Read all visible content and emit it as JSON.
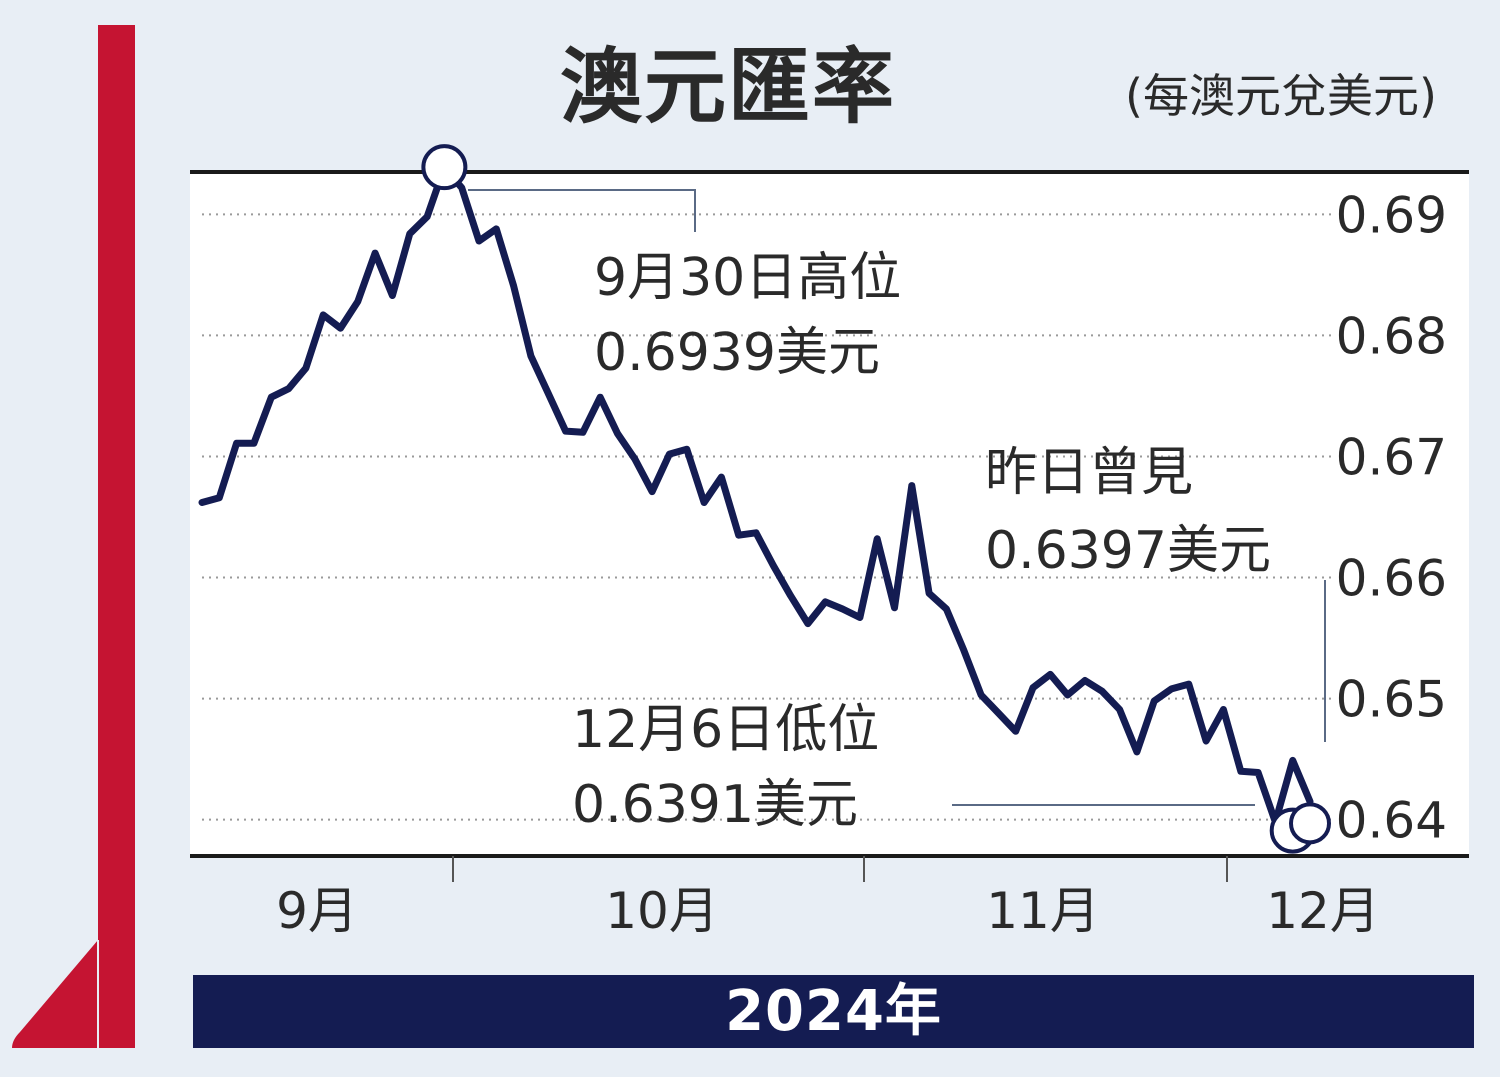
{
  "title": "澳元匯率",
  "unit": "(每澳元兌美元)",
  "year_label": "2024年",
  "colors": {
    "background": "#e8eef5",
    "accent_red": "#c51432",
    "line": "#141c52",
    "year_bar": "#141c52",
    "grid": "#9a9a9a",
    "text": "#2a2a2a"
  },
  "annotations": {
    "high_date": "9月30日高位",
    "high_value": "0.6939美元",
    "yesterday_label": "昨日曾見",
    "yesterday_value": "0.6397美元",
    "low_date": "12月6日低位",
    "low_value": "0.6391美元"
  },
  "chart_data": {
    "type": "line",
    "title": "澳元匯率",
    "subtitle": "(每澳元兌美元)",
    "xlabel": "2024年",
    "ylabel": "",
    "ylim": [
      0.637,
      0.6935
    ],
    "yticks": [
      0.64,
      0.65,
      0.66,
      0.67,
      0.68,
      0.69
    ],
    "ytick_labels": [
      "0.64",
      "0.65",
      "0.66",
      "0.67",
      "0.68",
      "0.69"
    ],
    "y_axis_side": "right",
    "grid": "horizontal dotted",
    "month_labels": [
      "9月",
      "10月",
      "11月",
      "12月"
    ],
    "series": [
      {
        "values": [
          0.6662,
          0.6666,
          0.6711,
          0.6711,
          0.6749,
          0.6756,
          0.6773,
          0.6817,
          0.6806,
          0.6828,
          0.6868,
          0.6833,
          0.6884,
          0.6898,
          0.6939,
          0.6922,
          0.6878,
          0.6888,
          0.6841,
          0.6783,
          0.6752,
          0.6721,
          0.672,
          0.6749,
          0.6719,
          0.6698,
          0.6671,
          0.6702,
          0.6706,
          0.6662,
          0.6683,
          0.6635,
          0.6637,
          0.661,
          0.6585,
          0.6562,
          0.658,
          0.6574,
          0.6567,
          0.6632,
          0.6575,
          0.6676,
          0.6587,
          0.6574,
          0.654,
          0.6503,
          0.6488,
          0.6473,
          0.6509,
          0.652,
          0.6503,
          0.6515,
          0.6506,
          0.6491,
          0.6456,
          0.6498,
          0.6508,
          0.6512,
          0.6465,
          0.6491,
          0.644,
          0.6439,
          0.6398,
          0.6449,
          0.6415
        ]
      }
    ],
    "highlights": [
      {
        "label": "9月30日高位",
        "value": 0.6939,
        "index": 14
      },
      {
        "label": "12月6日低位",
        "value": 0.6391,
        "index": 63
      },
      {
        "label": "昨日曾見",
        "value": 0.6397,
        "index": 64
      }
    ]
  }
}
